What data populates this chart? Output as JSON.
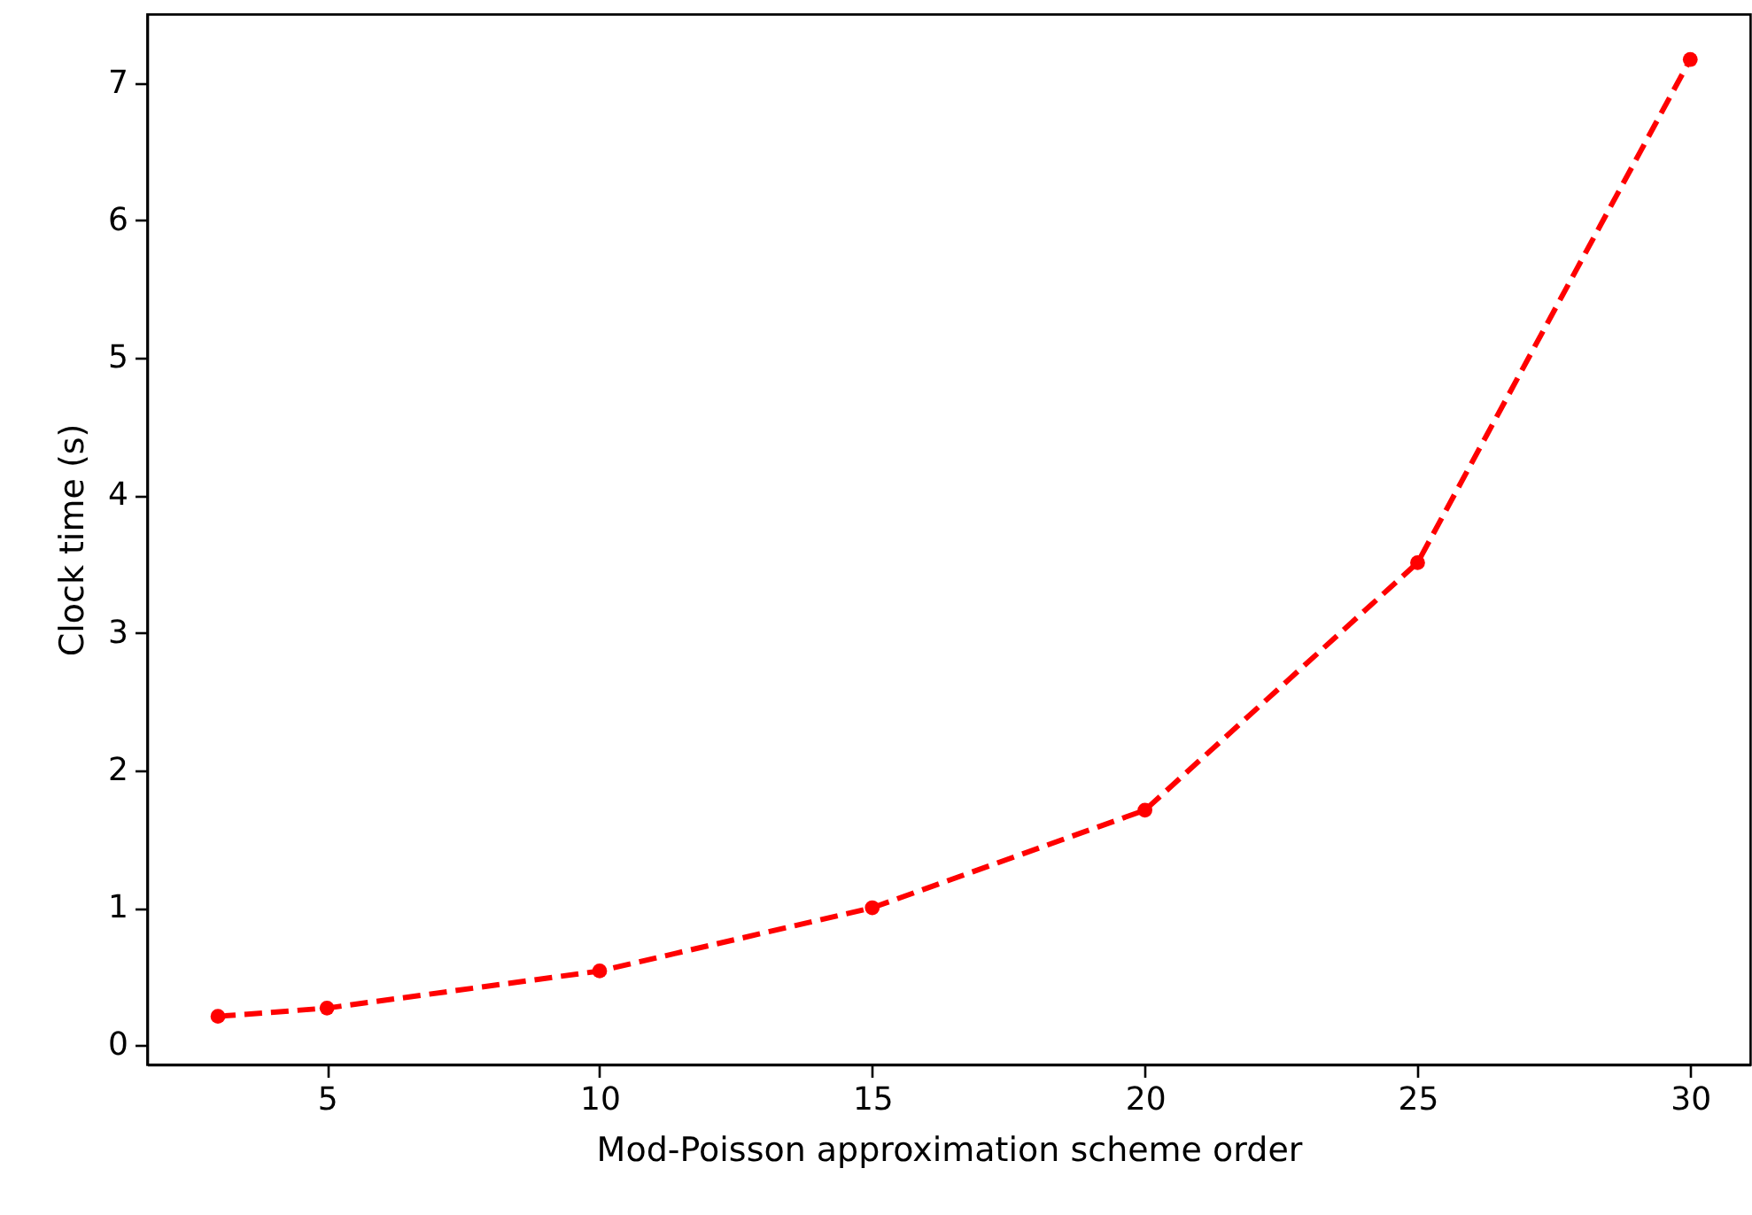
{
  "chart_data": {
    "type": "line",
    "xlabel": "Mod-Poisson approximation scheme order",
    "ylabel": "Clock time (s)",
    "x": [
      3,
      5,
      10,
      15,
      20,
      25,
      30
    ],
    "series": [
      {
        "color": "#ff0000",
        "values": [
          0.21,
          0.27,
          0.54,
          1.0,
          1.71,
          3.51,
          7.17
        ]
      }
    ],
    "xlim": [
      1.7,
      31.1
    ],
    "xticks": [
      5,
      10,
      15,
      20,
      25,
      30
    ],
    "ylim": [
      -0.14,
      7.5
    ],
    "yticks": [
      0,
      1,
      2,
      3,
      4,
      5,
      6,
      7
    ],
    "grid": false,
    "marker": "circle",
    "line_style": "dashed"
  }
}
